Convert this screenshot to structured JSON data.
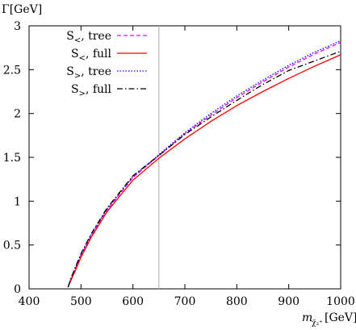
{
  "chart_data": {
    "type": "line",
    "ylabel": "Γ[GeV]",
    "xlabel_main": "m",
    "xlabel_sub": "χ̃₂⁺",
    "xlabel_unit": "[GeV]",
    "xlim": [
      400,
      1000
    ],
    "ylim": [
      0,
      3
    ],
    "x_ticks": [
      400,
      500,
      600,
      700,
      800,
      900,
      1000
    ],
    "y_ticks": [
      0,
      0.5,
      1,
      1.5,
      2,
      2.5,
      3
    ],
    "y_tick_labels": [
      "0",
      "0.5",
      "1",
      "1.5",
      "2",
      "2.5",
      "3"
    ],
    "vertical_line_x": 650,
    "legend_position": "top-left",
    "series": [
      {
        "name": "S<, tree",
        "label_main": "S",
        "label_sub": "<",
        "label_rest": ", tree",
        "color": "#ff00ff",
        "dash": "5,3",
        "x": [
          475,
          480,
          490,
          500,
          520,
          550,
          600,
          650,
          700,
          750,
          800,
          850,
          900,
          950,
          1000
        ],
        "y": [
          0.02,
          0.1,
          0.24,
          0.38,
          0.61,
          0.9,
          1.27,
          1.52,
          1.77,
          1.98,
          2.18,
          2.36,
          2.53,
          2.68,
          2.81
        ]
      },
      {
        "name": "S<, full",
        "label_main": "S",
        "label_sub": "<",
        "label_rest": ", full",
        "color": "#ff0000",
        "dash": "",
        "x": [
          475,
          480,
          490,
          500,
          520,
          550,
          600,
          650,
          700,
          750,
          800,
          850,
          900,
          950,
          1000
        ],
        "y": [
          0.02,
          0.09,
          0.22,
          0.36,
          0.59,
          0.88,
          1.24,
          1.49,
          1.71,
          1.91,
          2.09,
          2.25,
          2.4,
          2.54,
          2.67
        ]
      },
      {
        "name": "S>, tree",
        "label_main": "S",
        "label_sub": ">",
        "label_rest": ", tree",
        "color": "#0000ff",
        "dash": "1.5,2",
        "x": [
          475,
          480,
          490,
          500,
          520,
          550,
          600,
          650,
          700,
          750,
          800,
          850,
          900,
          950,
          1000
        ],
        "y": [
          0.02,
          0.11,
          0.25,
          0.39,
          0.62,
          0.91,
          1.28,
          1.53,
          1.78,
          2.0,
          2.2,
          2.38,
          2.55,
          2.7,
          2.83
        ]
      },
      {
        "name": "S>, full",
        "label_main": "S",
        "label_sub": ">",
        "label_rest": ", full",
        "color": "#000000",
        "dash": "7,3,1.5,3",
        "x": [
          475,
          480,
          490,
          500,
          520,
          550,
          600,
          650,
          700,
          750,
          800,
          850,
          900,
          950,
          1000
        ],
        "y": [
          0.02,
          0.11,
          0.26,
          0.4,
          0.63,
          0.92,
          1.29,
          1.52,
          1.76,
          1.96,
          2.15,
          2.33,
          2.49,
          2.6,
          2.71
        ]
      }
    ]
  }
}
